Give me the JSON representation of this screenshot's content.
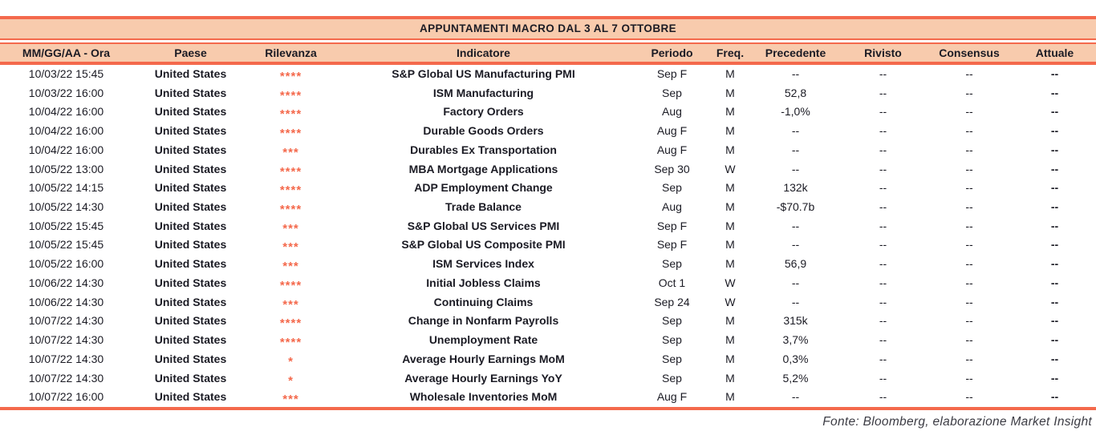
{
  "title": "APPUNTAMENTI MACRO DAL 3 AL 7 OTTOBRE",
  "colors": {
    "accent": "#F4694C",
    "band_bg": "#F8CBAD",
    "text": "#1B1B24"
  },
  "columns": [
    "MM/GG/AA - Ora",
    "Paese",
    "Rilevanza",
    "Indicatore",
    "Periodo",
    "Freq.",
    "Precedente",
    "Rivisto",
    "Consensus",
    "Attuale"
  ],
  "rows": [
    {
      "datetime": "10/03/22 15:45",
      "country": "United States",
      "relevance": "****",
      "indicator": "S&P Global US Manufacturing PMI",
      "period": "Sep F",
      "freq": "M",
      "previous": "--",
      "revised": "--",
      "consensus": "--",
      "actual": "--"
    },
    {
      "datetime": "10/03/22 16:00",
      "country": "United States",
      "relevance": "****",
      "indicator": "ISM Manufacturing",
      "period": "Sep",
      "freq": "M",
      "previous": "52,8",
      "revised": "--",
      "consensus": "--",
      "actual": "--"
    },
    {
      "datetime": "10/04/22 16:00",
      "country": "United States",
      "relevance": "****",
      "indicator": "Factory Orders",
      "period": "Aug",
      "freq": "M",
      "previous": "-1,0%",
      "revised": "--",
      "consensus": "--",
      "actual": "--"
    },
    {
      "datetime": "10/04/22 16:00",
      "country": "United States",
      "relevance": "****",
      "indicator": "Durable Goods Orders",
      "period": "Aug F",
      "freq": "M",
      "previous": "--",
      "revised": "--",
      "consensus": "--",
      "actual": "--"
    },
    {
      "datetime": "10/04/22 16:00",
      "country": "United States",
      "relevance": "***",
      "indicator": "Durables Ex Transportation",
      "period": "Aug F",
      "freq": "M",
      "previous": "--",
      "revised": "--",
      "consensus": "--",
      "actual": "--"
    },
    {
      "datetime": "10/05/22 13:00",
      "country": "United States",
      "relevance": "****",
      "indicator": "MBA Mortgage Applications",
      "period": "Sep 30",
      "freq": "W",
      "previous": "--",
      "revised": "--",
      "consensus": "--",
      "actual": "--"
    },
    {
      "datetime": "10/05/22 14:15",
      "country": "United States",
      "relevance": "****",
      "indicator": "ADP Employment Change",
      "period": "Sep",
      "freq": "M",
      "previous": "132k",
      "revised": "--",
      "consensus": "--",
      "actual": "--"
    },
    {
      "datetime": "10/05/22 14:30",
      "country": "United States",
      "relevance": "****",
      "indicator": "Trade Balance",
      "period": "Aug",
      "freq": "M",
      "previous": "-$70.7b",
      "revised": "--",
      "consensus": "--",
      "actual": "--"
    },
    {
      "datetime": "10/05/22 15:45",
      "country": "United States",
      "relevance": "***",
      "indicator": "S&P Global US Services PMI",
      "period": "Sep F",
      "freq": "M",
      "previous": "--",
      "revised": "--",
      "consensus": "--",
      "actual": "--"
    },
    {
      "datetime": "10/05/22 15:45",
      "country": "United States",
      "relevance": "***",
      "indicator": "S&P Global US Composite PMI",
      "period": "Sep F",
      "freq": "M",
      "previous": "--",
      "revised": "--",
      "consensus": "--",
      "actual": "--"
    },
    {
      "datetime": "10/05/22 16:00",
      "country": "United States",
      "relevance": "***",
      "indicator": "ISM Services Index",
      "period": "Sep",
      "freq": "M",
      "previous": "56,9",
      "revised": "--",
      "consensus": "--",
      "actual": "--"
    },
    {
      "datetime": "10/06/22 14:30",
      "country": "United States",
      "relevance": "****",
      "indicator": "Initial Jobless Claims",
      "period": "Oct 1",
      "freq": "W",
      "previous": "--",
      "revised": "--",
      "consensus": "--",
      "actual": "--"
    },
    {
      "datetime": "10/06/22 14:30",
      "country": "United States",
      "relevance": "***",
      "indicator": "Continuing Claims",
      "period": "Sep 24",
      "freq": "W",
      "previous": "--",
      "revised": "--",
      "consensus": "--",
      "actual": "--"
    },
    {
      "datetime": "10/07/22 14:30",
      "country": "United States",
      "relevance": "****",
      "indicator": "Change in Nonfarm Payrolls",
      "period": "Sep",
      "freq": "M",
      "previous": "315k",
      "revised": "--",
      "consensus": "--",
      "actual": "--"
    },
    {
      "datetime": "10/07/22 14:30",
      "country": "United States",
      "relevance": "****",
      "indicator": "Unemployment Rate",
      "period": "Sep",
      "freq": "M",
      "previous": "3,7%",
      "revised": "--",
      "consensus": "--",
      "actual": "--"
    },
    {
      "datetime": "10/07/22 14:30",
      "country": "United States",
      "relevance": "*",
      "indicator": "Average Hourly Earnings MoM",
      "period": "Sep",
      "freq": "M",
      "previous": "0,3%",
      "revised": "--",
      "consensus": "--",
      "actual": "--"
    },
    {
      "datetime": "10/07/22 14:30",
      "country": "United States",
      "relevance": "*",
      "indicator": "Average Hourly Earnings YoY",
      "period": "Sep",
      "freq": "M",
      "previous": "5,2%",
      "revised": "--",
      "consensus": "--",
      "actual": "--"
    },
    {
      "datetime": "10/07/22 16:00",
      "country": "United States",
      "relevance": "***",
      "indicator": "Wholesale Inventories MoM",
      "period": "Aug F",
      "freq": "M",
      "previous": "--",
      "revised": "--",
      "consensus": "--",
      "actual": "--"
    }
  ],
  "footer": "Fonte: Bloomberg, elaborazione Market Insight"
}
